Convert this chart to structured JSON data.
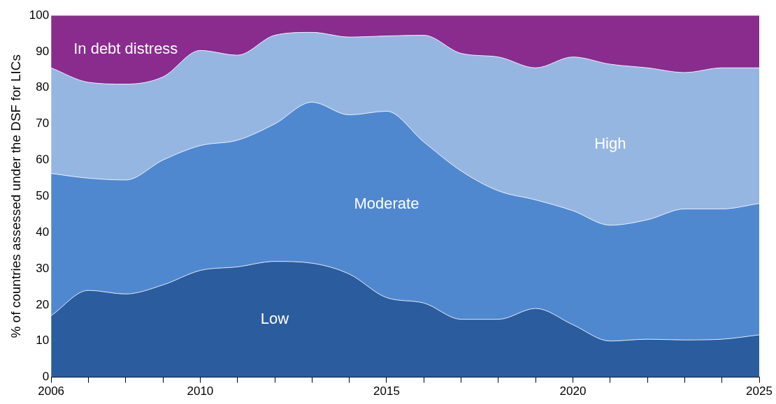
{
  "chart_data": {
    "type": "area",
    "stacked": true,
    "ylabel": "% of countries assessed under the DSF for LICs",
    "x": [
      2006,
      2007,
      2008,
      2009,
      2010,
      2011,
      2012,
      2013,
      2014,
      2015,
      2016,
      2017,
      2018,
      2019,
      2020,
      2021,
      2022,
      2023,
      2024,
      2025
    ],
    "series": [
      {
        "name": "Low",
        "color": "#2b5c9e",
        "values": [
          17,
          24,
          23,
          25.5,
          29.5,
          30.5,
          32,
          31.5,
          28.5,
          22,
          20.5,
          16,
          16,
          19,
          14.5,
          10,
          10.5,
          10.3,
          10.5,
          11.7
        ]
      },
      {
        "name": "Moderate",
        "color": "#5088d0",
        "values": [
          39.3,
          31,
          31.5,
          34.5,
          34.5,
          35,
          38,
          44.5,
          44,
          51.5,
          44.5,
          41,
          35.5,
          30,
          31.5,
          32,
          33,
          36.2,
          36,
          36.3
        ]
      },
      {
        "name": "High",
        "color": "#96b6e2",
        "values": [
          29.2,
          26.5,
          26.5,
          23,
          26.3,
          23.5,
          24.5,
          19.3,
          21.5,
          20.8,
          29.5,
          32.5,
          37,
          36.5,
          42.5,
          44.5,
          42,
          37.7,
          39,
          37.5
        ]
      },
      {
        "name": "In debt distress",
        "color": "#8a2b8e",
        "values": [
          14.5,
          18.5,
          19,
          17,
          9.7,
          11,
          5.5,
          4.7,
          6,
          5.7,
          5.5,
          10.5,
          11.5,
          14.5,
          11.5,
          13.5,
          14.5,
          15.8,
          14.5,
          14.5
        ]
      }
    ],
    "xlim": [
      2006,
      2025
    ],
    "xticks": [
      2006,
      {
        "value": 2007,
        "label": null
      },
      {
        "value": 2008,
        "label": null
      },
      {
        "value": 2009,
        "label": null
      },
      2010,
      {
        "value": 2011,
        "label": null
      },
      {
        "value": 2012,
        "label": null
      },
      {
        "value": 2013,
        "label": null
      },
      {
        "value": 2014,
        "label": null
      },
      2015,
      {
        "value": 2016,
        "label": null
      },
      {
        "value": 2017,
        "label": null
      },
      {
        "value": 2018,
        "label": null
      },
      {
        "value": 2019,
        "label": null
      },
      2020,
      {
        "value": 2021,
        "label": null
      },
      {
        "value": 2022,
        "label": null
      },
      {
        "value": 2023,
        "label": null
      },
      {
        "value": 2024,
        "label": null
      },
      2025
    ],
    "ylim": [
      0,
      100
    ],
    "yticks": [
      0,
      10,
      20,
      30,
      40,
      50,
      60,
      70,
      80,
      90,
      100
    ],
    "grid": "y",
    "legend": false
  }
}
